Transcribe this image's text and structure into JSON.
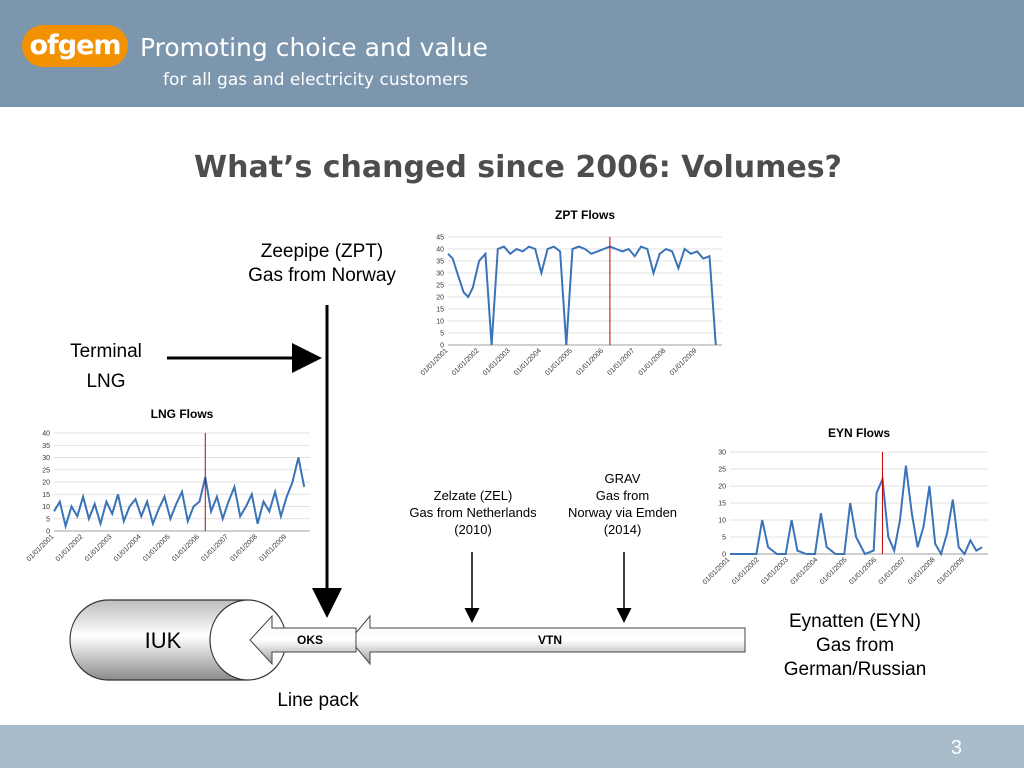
{
  "header": {
    "logo_text": "ofgem",
    "tagline_1": "Promoting choice and value",
    "tagline_2": "for all gas and electricity customers"
  },
  "slide": {
    "title": "What’s changed since 2006: Volumes?",
    "page_number": "3"
  },
  "labels": {
    "zpt_line1": "Zeepipe (ZPT)",
    "zpt_line2": "Gas from Norway",
    "lng_line1": "Terminal",
    "lng_line2": "LNG",
    "zel_line1": "Zelzate (ZEL)",
    "zel_line2": "Gas from Netherlands",
    "zel_line3": "(2010)",
    "grav_line1": "GRAV",
    "grav_line2": "Gas from",
    "grav_line3": "Norway via Emden",
    "grav_line4": "(2014)",
    "eyn_line1": "Eynatten (EYN)",
    "eyn_line2": "Gas from",
    "eyn_line3": "German/Russian",
    "iuk": "IUK",
    "oks": "OKS",
    "vtn": "VTN",
    "linepack": "Line pack"
  },
  "colors": {
    "header": "#7b96ad",
    "footer": "#a8bccb",
    "logo": "#f39200",
    "series": "#3b73b9",
    "marker": "#c00000"
  },
  "chart_data": [
    {
      "type": "line",
      "title": "ZPT Flows",
      "x_ticks": [
        "01/01/2001",
        "01/01/2002",
        "01/01/2003",
        "01/01/2004",
        "01/01/2005",
        "01/01/2006",
        "01/01/2007",
        "01/01/2008",
        "01/01/2009"
      ],
      "y_ticks": [
        0,
        5,
        10,
        15,
        20,
        25,
        30,
        35,
        40,
        45
      ],
      "ylim": [
        0,
        45
      ],
      "marker_year": 2006.2,
      "grid": true,
      "series": [
        {
          "x": [
            2001.0,
            2001.15,
            2001.3,
            2001.5,
            2001.65,
            2001.8,
            2002.0,
            2002.2,
            2002.4,
            2002.6,
            2002.8,
            2003.0,
            2003.2,
            2003.4,
            2003.6,
            2003.8,
            2004.0,
            2004.2,
            2004.4,
            2004.6,
            2004.8,
            2005.0,
            2005.2,
            2005.4,
            2005.6,
            2005.8,
            2006.0,
            2006.2,
            2006.4,
            2006.6,
            2006.8,
            2007.0,
            2007.2,
            2007.4,
            2007.6,
            2007.8,
            2008.0,
            2008.2,
            2008.4,
            2008.6,
            2008.8,
            2009.0,
            2009.2,
            2009.4,
            2009.6
          ],
          "y": [
            38,
            36,
            30,
            22,
            20,
            24,
            35,
            38,
            0,
            40,
            41,
            38,
            40,
            39,
            41,
            40,
            30,
            40,
            41,
            39,
            0,
            40,
            41,
            40,
            38,
            39,
            40,
            41,
            40,
            39,
            40,
            37,
            41,
            40,
            30,
            38,
            40,
            39,
            32,
            40,
            38,
            39,
            36,
            37,
            0
          ]
        }
      ]
    },
    {
      "type": "line",
      "title": "LNG Flows",
      "x_ticks": [
        "01/01/2001",
        "01/01/2002",
        "01/01/2003",
        "01/01/2004",
        "01/01/2005",
        "01/01/2006",
        "01/01/2007",
        "01/01/2008",
        "01/01/2009"
      ],
      "y_ticks": [
        0,
        5,
        10,
        15,
        20,
        25,
        30,
        35,
        40
      ],
      "ylim": [
        0,
        40
      ],
      "marker_year": 2006.2,
      "grid": true,
      "series": [
        {
          "x": [
            2001.0,
            2001.2,
            2001.4,
            2001.6,
            2001.8,
            2002.0,
            2002.2,
            2002.4,
            2002.6,
            2002.8,
            2003.0,
            2003.2,
            2003.4,
            2003.6,
            2003.8,
            2004.0,
            2004.2,
            2004.4,
            2004.6,
            2004.8,
            2005.0,
            2005.2,
            2005.4,
            2005.6,
            2005.8,
            2006.0,
            2006.2,
            2006.4,
            2006.6,
            2006.8,
            2007.0,
            2007.2,
            2007.4,
            2007.6,
            2007.8,
            2008.0,
            2008.2,
            2008.4,
            2008.6,
            2008.8,
            2009.0,
            2009.2,
            2009.4,
            2009.6
          ],
          "y": [
            8,
            12,
            2,
            10,
            6,
            14,
            5,
            11,
            3,
            12,
            7,
            15,
            4,
            10,
            13,
            6,
            12,
            3,
            9,
            14,
            5,
            11,
            16,
            4,
            10,
            12,
            22,
            8,
            14,
            5,
            12,
            18,
            6,
            10,
            15,
            3,
            12,
            8,
            16,
            6,
            14,
            20,
            30,
            18
          ]
        }
      ]
    },
    {
      "type": "line",
      "title": "EYN Flows",
      "x_ticks": [
        "01/01/2001",
        "01/01/2002",
        "01/01/2003",
        "01/01/2004",
        "01/01/2005",
        "01/01/2006",
        "01/01/2007",
        "01/01/2008",
        "01/01/2009"
      ],
      "y_ticks": [
        0,
        5,
        10,
        15,
        20,
        25,
        30
      ],
      "ylim": [
        0,
        30
      ],
      "marker_year": 2006.2,
      "grid": true,
      "series": [
        {
          "x": [
            2001.0,
            2001.3,
            2001.6,
            2001.9,
            2002.1,
            2002.3,
            2002.6,
            2002.9,
            2003.1,
            2003.3,
            2003.6,
            2003.9,
            2004.1,
            2004.3,
            2004.6,
            2004.9,
            2005.1,
            2005.3,
            2005.6,
            2005.9,
            2006.0,
            2006.2,
            2006.4,
            2006.6,
            2006.8,
            2007.0,
            2007.2,
            2007.4,
            2007.6,
            2007.8,
            2008.0,
            2008.2,
            2008.4,
            2008.6,
            2008.8,
            2009.0,
            2009.2,
            2009.4,
            2009.6
          ],
          "y": [
            0,
            0,
            0,
            0,
            10,
            2,
            0,
            0,
            10,
            1,
            0,
            0,
            12,
            2,
            0,
            0,
            15,
            5,
            0,
            1,
            18,
            22,
            5,
            1,
            10,
            26,
            12,
            2,
            8,
            20,
            3,
            0,
            6,
            16,
            2,
            0,
            4,
            1,
            2
          ]
        }
      ]
    }
  ]
}
